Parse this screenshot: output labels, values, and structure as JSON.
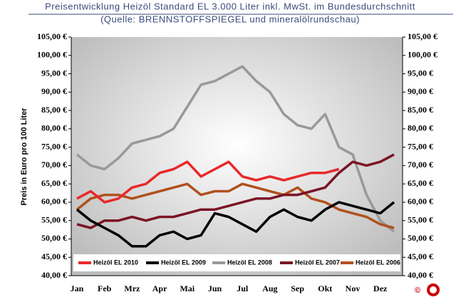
{
  "chart_data": {
    "type": "line",
    "title": "Preisentwicklung Heizöl Standard EL 3.000 Liter inkl. MwSt. im Bundesdurchschnitt",
    "subtitle": "(Quelle: BRENNSTOFFSPIEGEL und mineralölrundschau)",
    "y_label": "Preis in Euro pro 100 Liter",
    "categories": [
      "Jan",
      null,
      "Feb",
      null,
      "Mrz",
      null,
      "Apr",
      null,
      "Mai",
      null,
      "Jun",
      null,
      "Jul",
      null,
      "Aug",
      null,
      "Sep",
      null,
      "Okt",
      null,
      "Nov",
      null,
      "Dez",
      null
    ],
    "ylim": [
      40,
      105
    ],
    "yticks": [
      {
        "value": 40,
        "label": "40,00 €"
      },
      {
        "value": 45,
        "label": "45,00 €"
      },
      {
        "value": 50,
        "label": "50,00 €"
      },
      {
        "value": 55,
        "label": "55,00 €"
      },
      {
        "value": 60,
        "label": "60,00 €"
      },
      {
        "value": 65,
        "label": "65,00 €"
      },
      {
        "value": 70,
        "label": "70,00 €"
      },
      {
        "value": 75,
        "label": "75,00 €"
      },
      {
        "value": 80,
        "label": "80,00 €"
      },
      {
        "value": 85,
        "label": "85,00 €"
      },
      {
        "value": 90,
        "label": "90,00 €"
      },
      {
        "value": 95,
        "label": "95,00 €"
      },
      {
        "value": 100,
        "label": "100,00 €"
      },
      {
        "value": 105,
        "label": "105,00 €"
      }
    ],
    "series": [
      {
        "name": "Heizöl EL 2010",
        "color": "#e8282a",
        "values": [
          61,
          63,
          60,
          61,
          64,
          65,
          68,
          69,
          71,
          67,
          69,
          71,
          67,
          66,
          67,
          66,
          67,
          68,
          68,
          69,
          null,
          null,
          null,
          null
        ]
      },
      {
        "name": "Heizöl EL 2009",
        "color": "#000000",
        "values": [
          58,
          55,
          53,
          51,
          48,
          48,
          51,
          52,
          50,
          51,
          57,
          56,
          54,
          52,
          56,
          58,
          56,
          55,
          58,
          60,
          59,
          58,
          57,
          60
        ]
      },
      {
        "name": "Heizöl EL 2008",
        "color": "#999999",
        "values": [
          73,
          70,
          69,
          72,
          76,
          77,
          78,
          80,
          86,
          92,
          93,
          95,
          97,
          93,
          90,
          84,
          81,
          80,
          84,
          75,
          73,
          62,
          55,
          52
        ]
      },
      {
        "name": "Heizöl EL 2007",
        "color": "#7a1424",
        "values": [
          54,
          53,
          55,
          55,
          56,
          55,
          56,
          56,
          57,
          58,
          58,
          59,
          60,
          61,
          61,
          62,
          62,
          63,
          64,
          68,
          71,
          70,
          71,
          73
        ]
      },
      {
        "name": "Heizöl EL 2006",
        "color": "#b0501e",
        "values": [
          58,
          61,
          62,
          62,
          61,
          62,
          63,
          64,
          65,
          62,
          63,
          63,
          65,
          64,
          63,
          62,
          64,
          61,
          60,
          58,
          57,
          56,
          54,
          53
        ]
      }
    ]
  }
}
